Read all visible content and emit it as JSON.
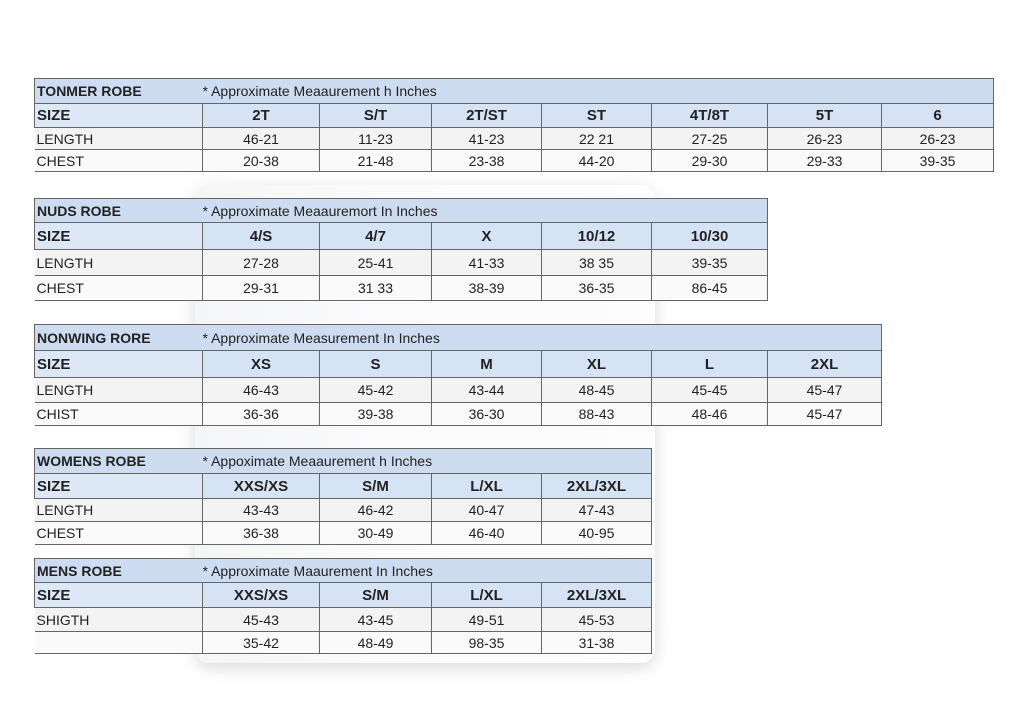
{
  "note": "* Approximate Meaaurement h Inches",
  "tables": [
    {
      "title": "TONMER ROBE",
      "note": "* Approximate Meaaurement h Inches",
      "size_label": "SIZE",
      "sizes": [
        "2T",
        "S/T",
        "2T/ST",
        "ST",
        "4T/8T",
        "5T",
        "6"
      ],
      "rows": [
        {
          "label": "LENGTH",
          "values": [
            "46-21",
            "11-23",
            "41-23",
            "22 21",
            "27-25",
            "26-23",
            "26-23"
          ]
        },
        {
          "label": "CHEST",
          "values": [
            "20-38",
            "21-48",
            "23-38",
            "44-20",
            "29-30",
            "29-33",
            "39-35"
          ]
        }
      ]
    },
    {
      "title": "NUDS ROBE",
      "note": "* Approximate Meaauremort In Inches",
      "size_label": "SIZE",
      "sizes": [
        "4/S",
        "4/7",
        "X",
        "10/12",
        "10/30"
      ],
      "rows": [
        {
          "label": "LENGTH",
          "values": [
            "27-28",
            "25-41",
            "41-33",
            "38 35",
            "39-35"
          ]
        },
        {
          "label": "CHEST",
          "values": [
            "29-31",
            "31 33",
            "38-39",
            "36-35",
            "86-45"
          ]
        }
      ]
    },
    {
      "title": "NONWING RORE",
      "note": "* Approximate Measurement In Inches",
      "size_label": "SIZE",
      "sizes": [
        "XS",
        "S",
        "M",
        "XL",
        "L",
        "2XL"
      ],
      "rows": [
        {
          "label": "LENGTH",
          "values": [
            "46-43",
            "45-42",
            "43-44",
            "48-45",
            "45-45",
            "45-47"
          ]
        },
        {
          "label": "CHIST",
          "values": [
            "36-36",
            "39-38",
            "36-30",
            "88-43",
            "48-46",
            "45-47"
          ]
        }
      ]
    },
    {
      "title": "WOMENS ROBE",
      "note": "* Appoximate Meaaurement h Inches",
      "size_label": "SIZE",
      "sizes": [
        "XXS/XS",
        "S/M",
        "L/XL",
        "2XL/3XL"
      ],
      "rows": [
        {
          "label": "LENGTH",
          "values": [
            "43-43",
            "46-42",
            "40-47",
            "47-43"
          ]
        },
        {
          "label": "CHEST",
          "values": [
            "36-38",
            "30-49",
            "46-40",
            "40-95"
          ]
        }
      ]
    },
    {
      "title": "MENS ROBE",
      "note": "* Approximate Maaurement In Inches",
      "size_label": "SIZE",
      "sizes": [
        "XXS/XS",
        "S/M",
        "L/XL",
        "2XL/3XL"
      ],
      "rows": [
        {
          "label": "SHIGTH",
          "values": [
            "45-43",
            "43-45",
            "49-51",
            "45-53"
          ]
        },
        {
          "label": "",
          "values": [
            "35-42",
            "48-49",
            "98-35",
            "31-38"
          ]
        }
      ]
    }
  ]
}
